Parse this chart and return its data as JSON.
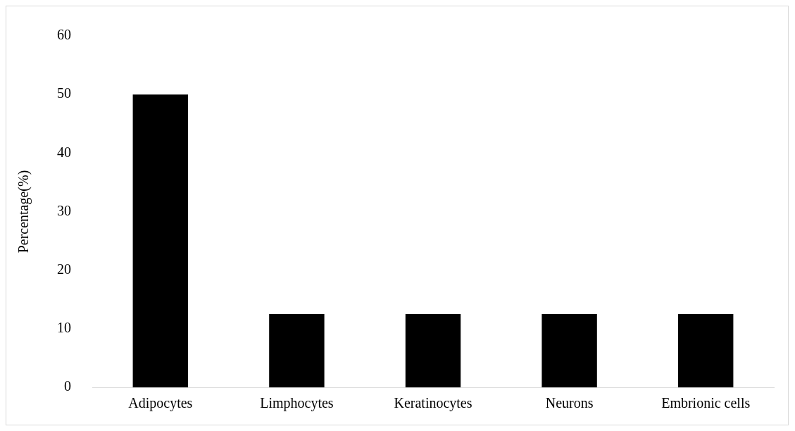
{
  "chart_data": {
    "type": "bar",
    "ylabel": "Percentage(%)",
    "categories": [
      "Adipocytes",
      "Limphocytes",
      "Keratinocytes",
      "Neurons",
      "Embrionic cells"
    ],
    "values": [
      50,
      12.5,
      12.5,
      12.5,
      12.5
    ],
    "color": "#000000",
    "ylim": [
      0,
      60
    ],
    "yticks": [
      0,
      10,
      20,
      30,
      40,
      50,
      60
    ],
    "grid": false,
    "legend": false
  }
}
